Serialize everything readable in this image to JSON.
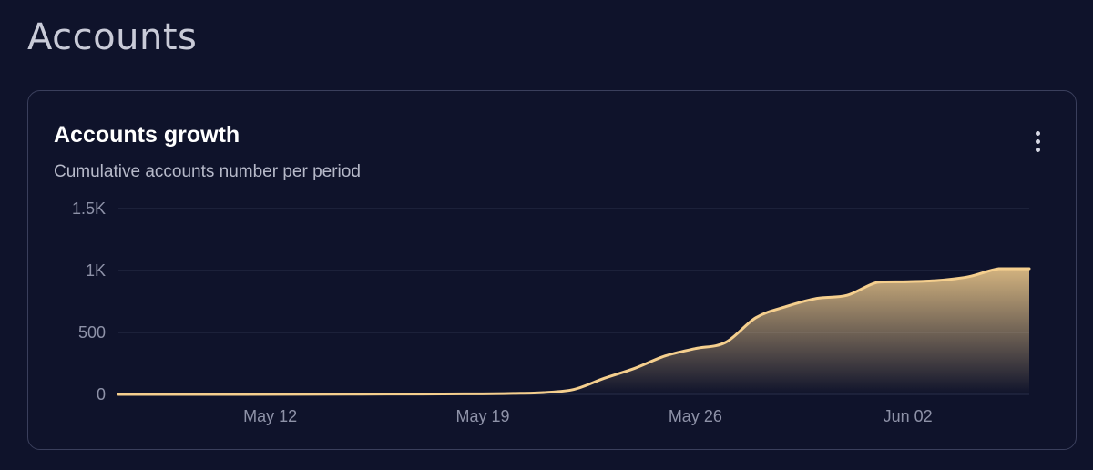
{
  "page": {
    "title": "Accounts"
  },
  "card": {
    "title": "Accounts growth",
    "subtitle": "Cumulative accounts number per period",
    "menu_icon": "more-vertical-icon"
  },
  "colors": {
    "background": "#0f132b",
    "line": "#f5cf8e",
    "grid": "#2a2f4a",
    "tick": "#8e92a8"
  },
  "chart_data": {
    "type": "area",
    "xlabel": "",
    "ylabel": "",
    "ylim": [
      0,
      1500
    ],
    "yticks": [
      {
        "value": 0,
        "label": "0"
      },
      {
        "value": 500,
        "label": "500"
      },
      {
        "value": 1000,
        "label": "1K"
      },
      {
        "value": 1500,
        "label": "1.5K"
      }
    ],
    "xlim": [
      "2024-05-07",
      "2024-06-06"
    ],
    "xticks": [
      {
        "date": "2024-05-12",
        "label": "May 12"
      },
      {
        "date": "2024-05-19",
        "label": "May 19"
      },
      {
        "date": "2024-05-26",
        "label": "May 26"
      },
      {
        "date": "2024-06-02",
        "label": "Jun 02"
      }
    ],
    "grid": true,
    "legend": "none",
    "series": [
      {
        "x": [
          "2024-05-07",
          "2024-05-09",
          "2024-05-11",
          "2024-05-13",
          "2024-05-15",
          "2024-05-17",
          "2024-05-19",
          "2024-05-20",
          "2024-05-21",
          "2024-05-22",
          "2024-05-23",
          "2024-05-24",
          "2024-05-25",
          "2024-05-26",
          "2024-05-27",
          "2024-05-28",
          "2024-05-29",
          "2024-05-30",
          "2024-05-31",
          "2024-06-01",
          "2024-06-02",
          "2024-06-03",
          "2024-06-04",
          "2024-06-05",
          "2024-06-06"
        ],
        "y": [
          0,
          0,
          0,
          1,
          2,
          3,
          5,
          8,
          15,
          40,
          130,
          210,
          310,
          370,
          420,
          620,
          710,
          775,
          800,
          905,
          910,
          920,
          950,
          1015,
          1015
        ]
      }
    ]
  }
}
